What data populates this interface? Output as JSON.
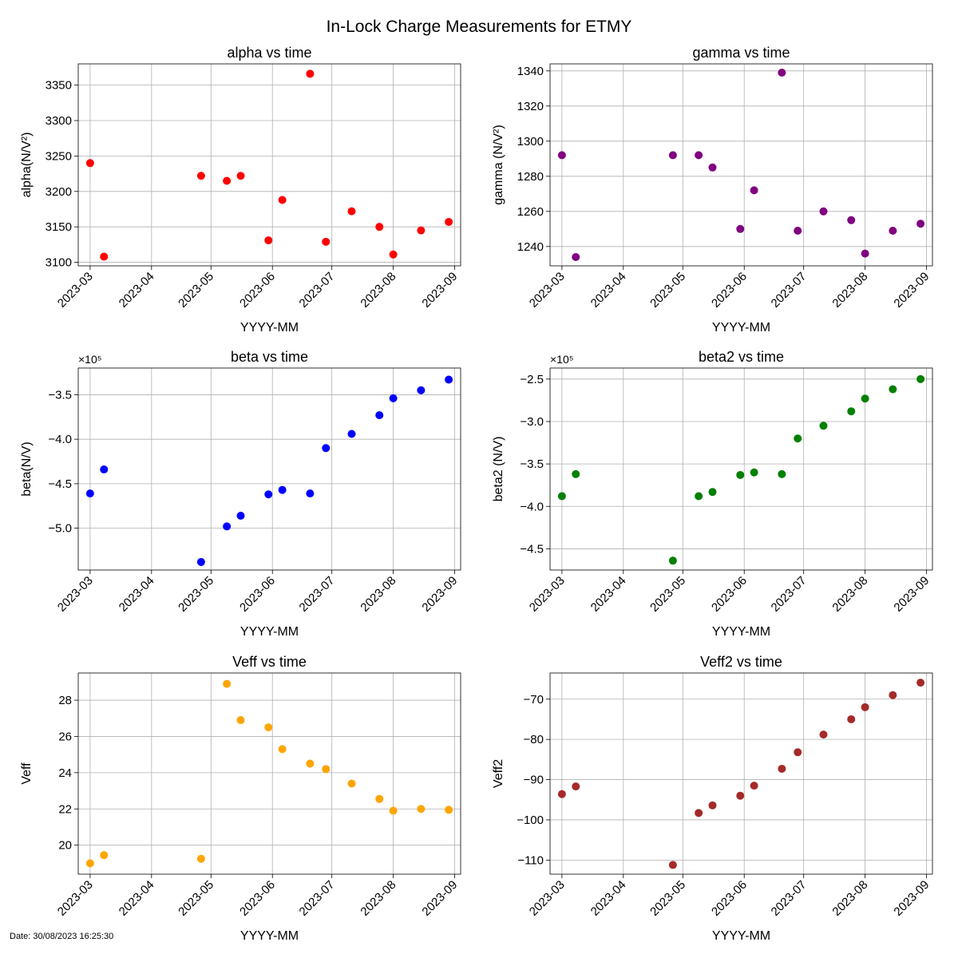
{
  "figure": {
    "title": "In-Lock Charge Measurements for ETMY",
    "footer": "Date: 30/08/2023 16:25:30"
  },
  "chart_data": [
    {
      "type": "scatter",
      "title": "alpha vs time",
      "xlabel": "YYYY-MM",
      "ylabel": "alpha(N/V²)",
      "color": "#ff0000",
      "x": [
        "2023-03-01",
        "2023-03-08",
        "2023-04-26",
        "2023-05-09",
        "2023-05-16",
        "2023-05-30",
        "2023-06-06",
        "2023-06-20",
        "2023-06-28",
        "2023-07-11",
        "2023-07-25",
        "2023-08-01",
        "2023-08-15",
        "2023-08-29"
      ],
      "y": [
        3240,
        3108,
        3222,
        3215,
        3222,
        3131,
        3188,
        3366,
        3129,
        3172,
        3150,
        3111,
        3145,
        3157
      ],
      "ylim": [
        3095,
        3380
      ],
      "yticks": [
        3100,
        3150,
        3200,
        3250,
        3300,
        3350
      ],
      "ytick_labels": [
        "3100",
        "3150",
        "3200",
        "3250",
        "3300",
        "3350"
      ],
      "multiplier_label": "",
      "xtick_labels": [
        "2023-03",
        "2023-04",
        "2023-05",
        "2023-06",
        "2023-07",
        "2023-08",
        "2023-09"
      ],
      "grid": true
    },
    {
      "type": "scatter",
      "title": "gamma vs time",
      "xlabel": "YYYY-MM",
      "ylabel": "gamma (N/V²)",
      "color": "#800080",
      "x": [
        "2023-03-01",
        "2023-03-08",
        "2023-04-26",
        "2023-05-09",
        "2023-05-16",
        "2023-05-30",
        "2023-06-06",
        "2023-06-20",
        "2023-06-28",
        "2023-07-11",
        "2023-07-25",
        "2023-08-01",
        "2023-08-15",
        "2023-08-29"
      ],
      "y": [
        1292,
        1234,
        1292,
        1292,
        1285,
        1250,
        1272,
        1339,
        1249,
        1260,
        1255,
        1236,
        1249,
        1253
      ],
      "ylim": [
        1229,
        1344
      ],
      "yticks": [
        1240,
        1260,
        1280,
        1300,
        1320,
        1340
      ],
      "ytick_labels": [
        "1240",
        "1260",
        "1280",
        "1300",
        "1320",
        "1340"
      ],
      "multiplier_label": "",
      "xtick_labels": [
        "2023-03",
        "2023-04",
        "2023-05",
        "2023-06",
        "2023-07",
        "2023-08",
        "2023-09"
      ],
      "grid": true
    },
    {
      "type": "scatter",
      "title": "beta vs time",
      "xlabel": "YYYY-MM",
      "ylabel": "beta(N/V)",
      "color": "#0000ff",
      "x": [
        "2023-03-01",
        "2023-03-08",
        "2023-04-26",
        "2023-05-09",
        "2023-05-16",
        "2023-05-30",
        "2023-06-06",
        "2023-06-20",
        "2023-06-28",
        "2023-07-11",
        "2023-07-25",
        "2023-08-01",
        "2023-08-15",
        "2023-08-29"
      ],
      "y": [
        -461000,
        -434000,
        -538000,
        -498000,
        -486000,
        -462000,
        -457000,
        -461000,
        -410000,
        -394000,
        -373000,
        -354000,
        -345000,
        -333000
      ],
      "ylim": [
        -547000,
        -320000
      ],
      "yticks": [
        -500000,
        -450000,
        -400000,
        -350000
      ],
      "ytick_labels": [
        "−5.0",
        "−4.5",
        "−4.0",
        "−3.5"
      ],
      "multiplier_label": "×10⁵",
      "xtick_labels": [
        "2023-03",
        "2023-04",
        "2023-05",
        "2023-06",
        "2023-07",
        "2023-08",
        "2023-09"
      ],
      "grid": true
    },
    {
      "type": "scatter",
      "title": "beta2 vs time",
      "xlabel": "YYYY-MM",
      "ylabel": "beta2 (N/V)",
      "color": "#008000",
      "x": [
        "2023-03-01",
        "2023-03-08",
        "2023-04-26",
        "2023-05-09",
        "2023-05-16",
        "2023-05-30",
        "2023-06-06",
        "2023-06-20",
        "2023-06-28",
        "2023-07-11",
        "2023-07-25",
        "2023-08-01",
        "2023-08-15",
        "2023-08-29"
      ],
      "y": [
        -388000,
        -362000,
        -464000,
        -388000,
        -383000,
        -363000,
        -360000,
        -362000,
        -320000,
        -305000,
        -288000,
        -273000,
        -262000,
        -250000
      ],
      "ylim": [
        -475000,
        -237000
      ],
      "yticks": [
        -450000,
        -400000,
        -350000,
        -300000,
        -250000
      ],
      "ytick_labels": [
        "−4.5",
        "−4.0",
        "−3.5",
        "−3.0",
        "−2.5"
      ],
      "multiplier_label": "×10⁵",
      "xtick_labels": [
        "2023-03",
        "2023-04",
        "2023-05",
        "2023-06",
        "2023-07",
        "2023-08",
        "2023-09"
      ],
      "grid": true
    },
    {
      "type": "scatter",
      "title": "Veff vs time",
      "xlabel": "YYYY-MM",
      "ylabel": "Veff",
      "color": "#ffa500",
      "x": [
        "2023-03-01",
        "2023-03-08",
        "2023-04-26",
        "2023-05-09",
        "2023-05-16",
        "2023-05-30",
        "2023-06-06",
        "2023-06-20",
        "2023-06-28",
        "2023-07-11",
        "2023-07-25",
        "2023-08-01",
        "2023-08-15",
        "2023-08-29"
      ],
      "y": [
        19.0,
        19.45,
        19.25,
        28.9,
        26.9,
        26.5,
        25.3,
        24.5,
        24.2,
        23.4,
        22.55,
        21.9,
        22.0,
        21.95
      ],
      "ylim": [
        18.4,
        29.5
      ],
      "yticks": [
        20,
        22,
        24,
        26,
        28
      ],
      "ytick_labels": [
        "20",
        "22",
        "24",
        "26",
        "28"
      ],
      "multiplier_label": "",
      "xtick_labels": [
        "2023-03",
        "2023-04",
        "2023-05",
        "2023-06",
        "2023-07",
        "2023-08",
        "2023-09"
      ],
      "grid": true
    },
    {
      "type": "scatter",
      "title": "Veff2 vs time",
      "xlabel": "YYYY-MM",
      "ylabel": "Veff2",
      "color": "#a52a2a",
      "x": [
        "2023-03-01",
        "2023-03-08",
        "2023-04-26",
        "2023-05-09",
        "2023-05-16",
        "2023-05-30",
        "2023-06-06",
        "2023-06-20",
        "2023-06-28",
        "2023-07-11",
        "2023-07-25",
        "2023-08-01",
        "2023-08-15",
        "2023-08-29"
      ],
      "y": [
        -93.6,
        -91.7,
        -111.2,
        -98.3,
        -96.4,
        -94.0,
        -91.5,
        -87.3,
        -83.2,
        -78.8,
        -75.0,
        -72.0,
        -69.0,
        -65.9
      ],
      "ylim": [
        -113.5,
        -63.5
      ],
      "yticks": [
        -110,
        -100,
        -90,
        -80,
        -70
      ],
      "ytick_labels": [
        "−110",
        "−100",
        "−90",
        "−80",
        "−70"
      ],
      "multiplier_label": "",
      "xtick_labels": [
        "2023-03",
        "2023-04",
        "2023-05",
        "2023-06",
        "2023-07",
        "2023-08",
        "2023-09"
      ],
      "grid": true
    }
  ]
}
